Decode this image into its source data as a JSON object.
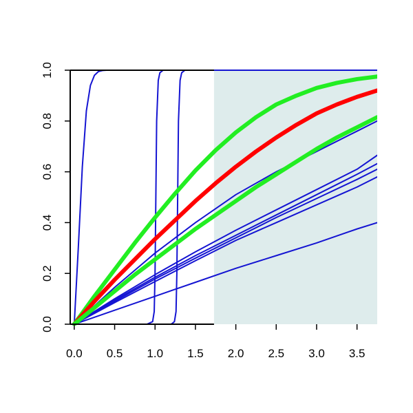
{
  "chart_data": {
    "type": "line",
    "title": "",
    "xlabel": "",
    "ylabel": "",
    "xlim": [
      -0.05,
      3.75
    ],
    "ylim": [
      0,
      1
    ],
    "grid": false,
    "legend": "none",
    "x_ticks": [
      {
        "value": 0.0,
        "label": "0.0"
      },
      {
        "value": 0.5,
        "label": "0.5"
      },
      {
        "value": 1.0,
        "label": "1.0"
      },
      {
        "value": 1.5,
        "label": "1.5"
      },
      {
        "value": 2.0,
        "label": "2.0"
      },
      {
        "value": 2.5,
        "label": "2.5"
      },
      {
        "value": 3.0,
        "label": "3.0"
      },
      {
        "value": 3.5,
        "label": "3.5"
      }
    ],
    "y_ticks": [
      {
        "value": 0.0,
        "label": "0.0"
      },
      {
        "value": 0.2,
        "label": "0.2"
      },
      {
        "value": 0.4,
        "label": "0.4"
      },
      {
        "value": 0.6,
        "label": "0.6"
      },
      {
        "value": 0.8,
        "label": "0.8"
      },
      {
        "value": 1.0,
        "label": "1.0"
      }
    ],
    "shaded_region": {
      "x_from": 1.73,
      "x_to": 3.75,
      "color": "#deecec"
    },
    "colors": {
      "blue": "#1414d2",
      "red": "#ff0000",
      "green": "#22ee22",
      "axis": "#000000"
    },
    "series": [
      {
        "color": "#1414d2",
        "x": [
          0.0,
          0.05,
          0.1,
          0.15,
          0.2,
          0.25,
          0.3,
          0.35,
          0.4,
          0.5,
          0.7,
          1.0,
          1.5,
          2.0,
          2.5,
          3.0,
          3.5,
          3.75
        ],
        "y": [
          0.0,
          0.3,
          0.62,
          0.84,
          0.94,
          0.98,
          0.995,
          0.999,
          1.0,
          1.0,
          1.0,
          1.0,
          1.0,
          1.0,
          1.0,
          1.0,
          1.0,
          1.0
        ]
      },
      {
        "color": "#1414d2",
        "x": [
          0.0,
          0.9,
          0.97,
          0.99,
          1.0,
          1.01,
          1.02,
          1.04,
          1.06,
          1.1,
          1.3,
          2.0,
          3.75
        ],
        "y": [
          0.0,
          0.0,
          0.01,
          0.05,
          0.2,
          0.5,
          0.8,
          0.96,
          0.99,
          1.0,
          1.0,
          1.0,
          1.0
        ]
      },
      {
        "color": "#1414d2",
        "x": [
          0.0,
          1.2,
          1.24,
          1.26,
          1.27,
          1.28,
          1.29,
          1.31,
          1.33,
          1.37,
          1.5,
          2.0,
          3.75
        ],
        "y": [
          0.0,
          0.0,
          0.01,
          0.05,
          0.2,
          0.5,
          0.8,
          0.96,
          0.99,
          1.0,
          1.0,
          1.0,
          1.0
        ]
      },
      {
        "color": "#1414d2",
        "x": [
          0,
          0.5,
          1.0,
          1.5,
          2.0,
          2.5,
          3.0,
          3.5,
          3.75
        ],
        "y": [
          0,
          0.145,
          0.28,
          0.4,
          0.51,
          0.6,
          0.68,
          0.76,
          0.8
        ]
      },
      {
        "color": "#1414d2",
        "x": [
          0,
          0.5,
          1.0,
          1.5,
          2.0,
          2.5,
          3.0,
          3.5,
          3.75
        ],
        "y": [
          0,
          0.1,
          0.195,
          0.285,
          0.37,
          0.45,
          0.53,
          0.61,
          0.665
        ]
      },
      {
        "color": "#1414d2",
        "x": [
          0,
          0.5,
          1.0,
          1.5,
          2.0,
          2.5,
          3.0,
          3.5,
          3.75
        ],
        "y": [
          0,
          0.095,
          0.185,
          0.27,
          0.35,
          0.43,
          0.51,
          0.59,
          0.632
        ]
      },
      {
        "color": "#1414d2",
        "x": [
          0,
          0.5,
          1.0,
          1.5,
          2.0,
          2.5,
          3.0,
          3.5,
          3.75
        ],
        "y": [
          0,
          0.09,
          0.178,
          0.26,
          0.34,
          0.42,
          0.495,
          0.57,
          0.61
        ]
      },
      {
        "color": "#1414d2",
        "x": [
          0,
          0.5,
          1.0,
          1.5,
          2.0,
          2.5,
          3.0,
          3.5,
          3.75
        ],
        "y": [
          0,
          0.085,
          0.168,
          0.25,
          0.33,
          0.4,
          0.47,
          0.54,
          0.58
        ]
      },
      {
        "color": "#1414d2",
        "x": [
          0,
          0.5,
          1.0,
          1.5,
          2.0,
          2.5,
          3.0,
          3.5,
          3.75
        ],
        "y": [
          0,
          0.055,
          0.11,
          0.165,
          0.22,
          0.27,
          0.32,
          0.375,
          0.4
        ]
      },
      {
        "color": "#22ee22",
        "x": [
          0,
          0.25,
          0.5,
          0.75,
          1.0,
          1.25,
          1.5,
          1.75,
          2.0,
          2.25,
          2.5,
          2.75,
          3.0,
          3.25,
          3.5,
          3.75
        ],
        "y": [
          0,
          0.11,
          0.215,
          0.32,
          0.42,
          0.515,
          0.605,
          0.685,
          0.755,
          0.815,
          0.865,
          0.9,
          0.93,
          0.95,
          0.965,
          0.975
        ]
      },
      {
        "color": "#ff0000",
        "x": [
          0,
          0.25,
          0.5,
          0.75,
          1.0,
          1.25,
          1.5,
          1.75,
          2.0,
          2.25,
          2.5,
          2.75,
          3.0,
          3.25,
          3.5,
          3.75
        ],
        "y": [
          0,
          0.09,
          0.175,
          0.255,
          0.335,
          0.41,
          0.485,
          0.555,
          0.62,
          0.68,
          0.735,
          0.785,
          0.83,
          0.865,
          0.895,
          0.92
        ]
      },
      {
        "color": "#22ee22",
        "x": [
          0,
          0.25,
          0.5,
          0.75,
          1.0,
          1.25,
          1.5,
          1.75,
          2.0,
          2.25,
          2.5,
          2.75,
          3.0,
          3.25,
          3.5,
          3.75
        ],
        "y": [
          0,
          0.065,
          0.13,
          0.195,
          0.255,
          0.315,
          0.375,
          0.43,
          0.485,
          0.54,
          0.59,
          0.64,
          0.69,
          0.735,
          0.775,
          0.815
        ]
      }
    ]
  }
}
